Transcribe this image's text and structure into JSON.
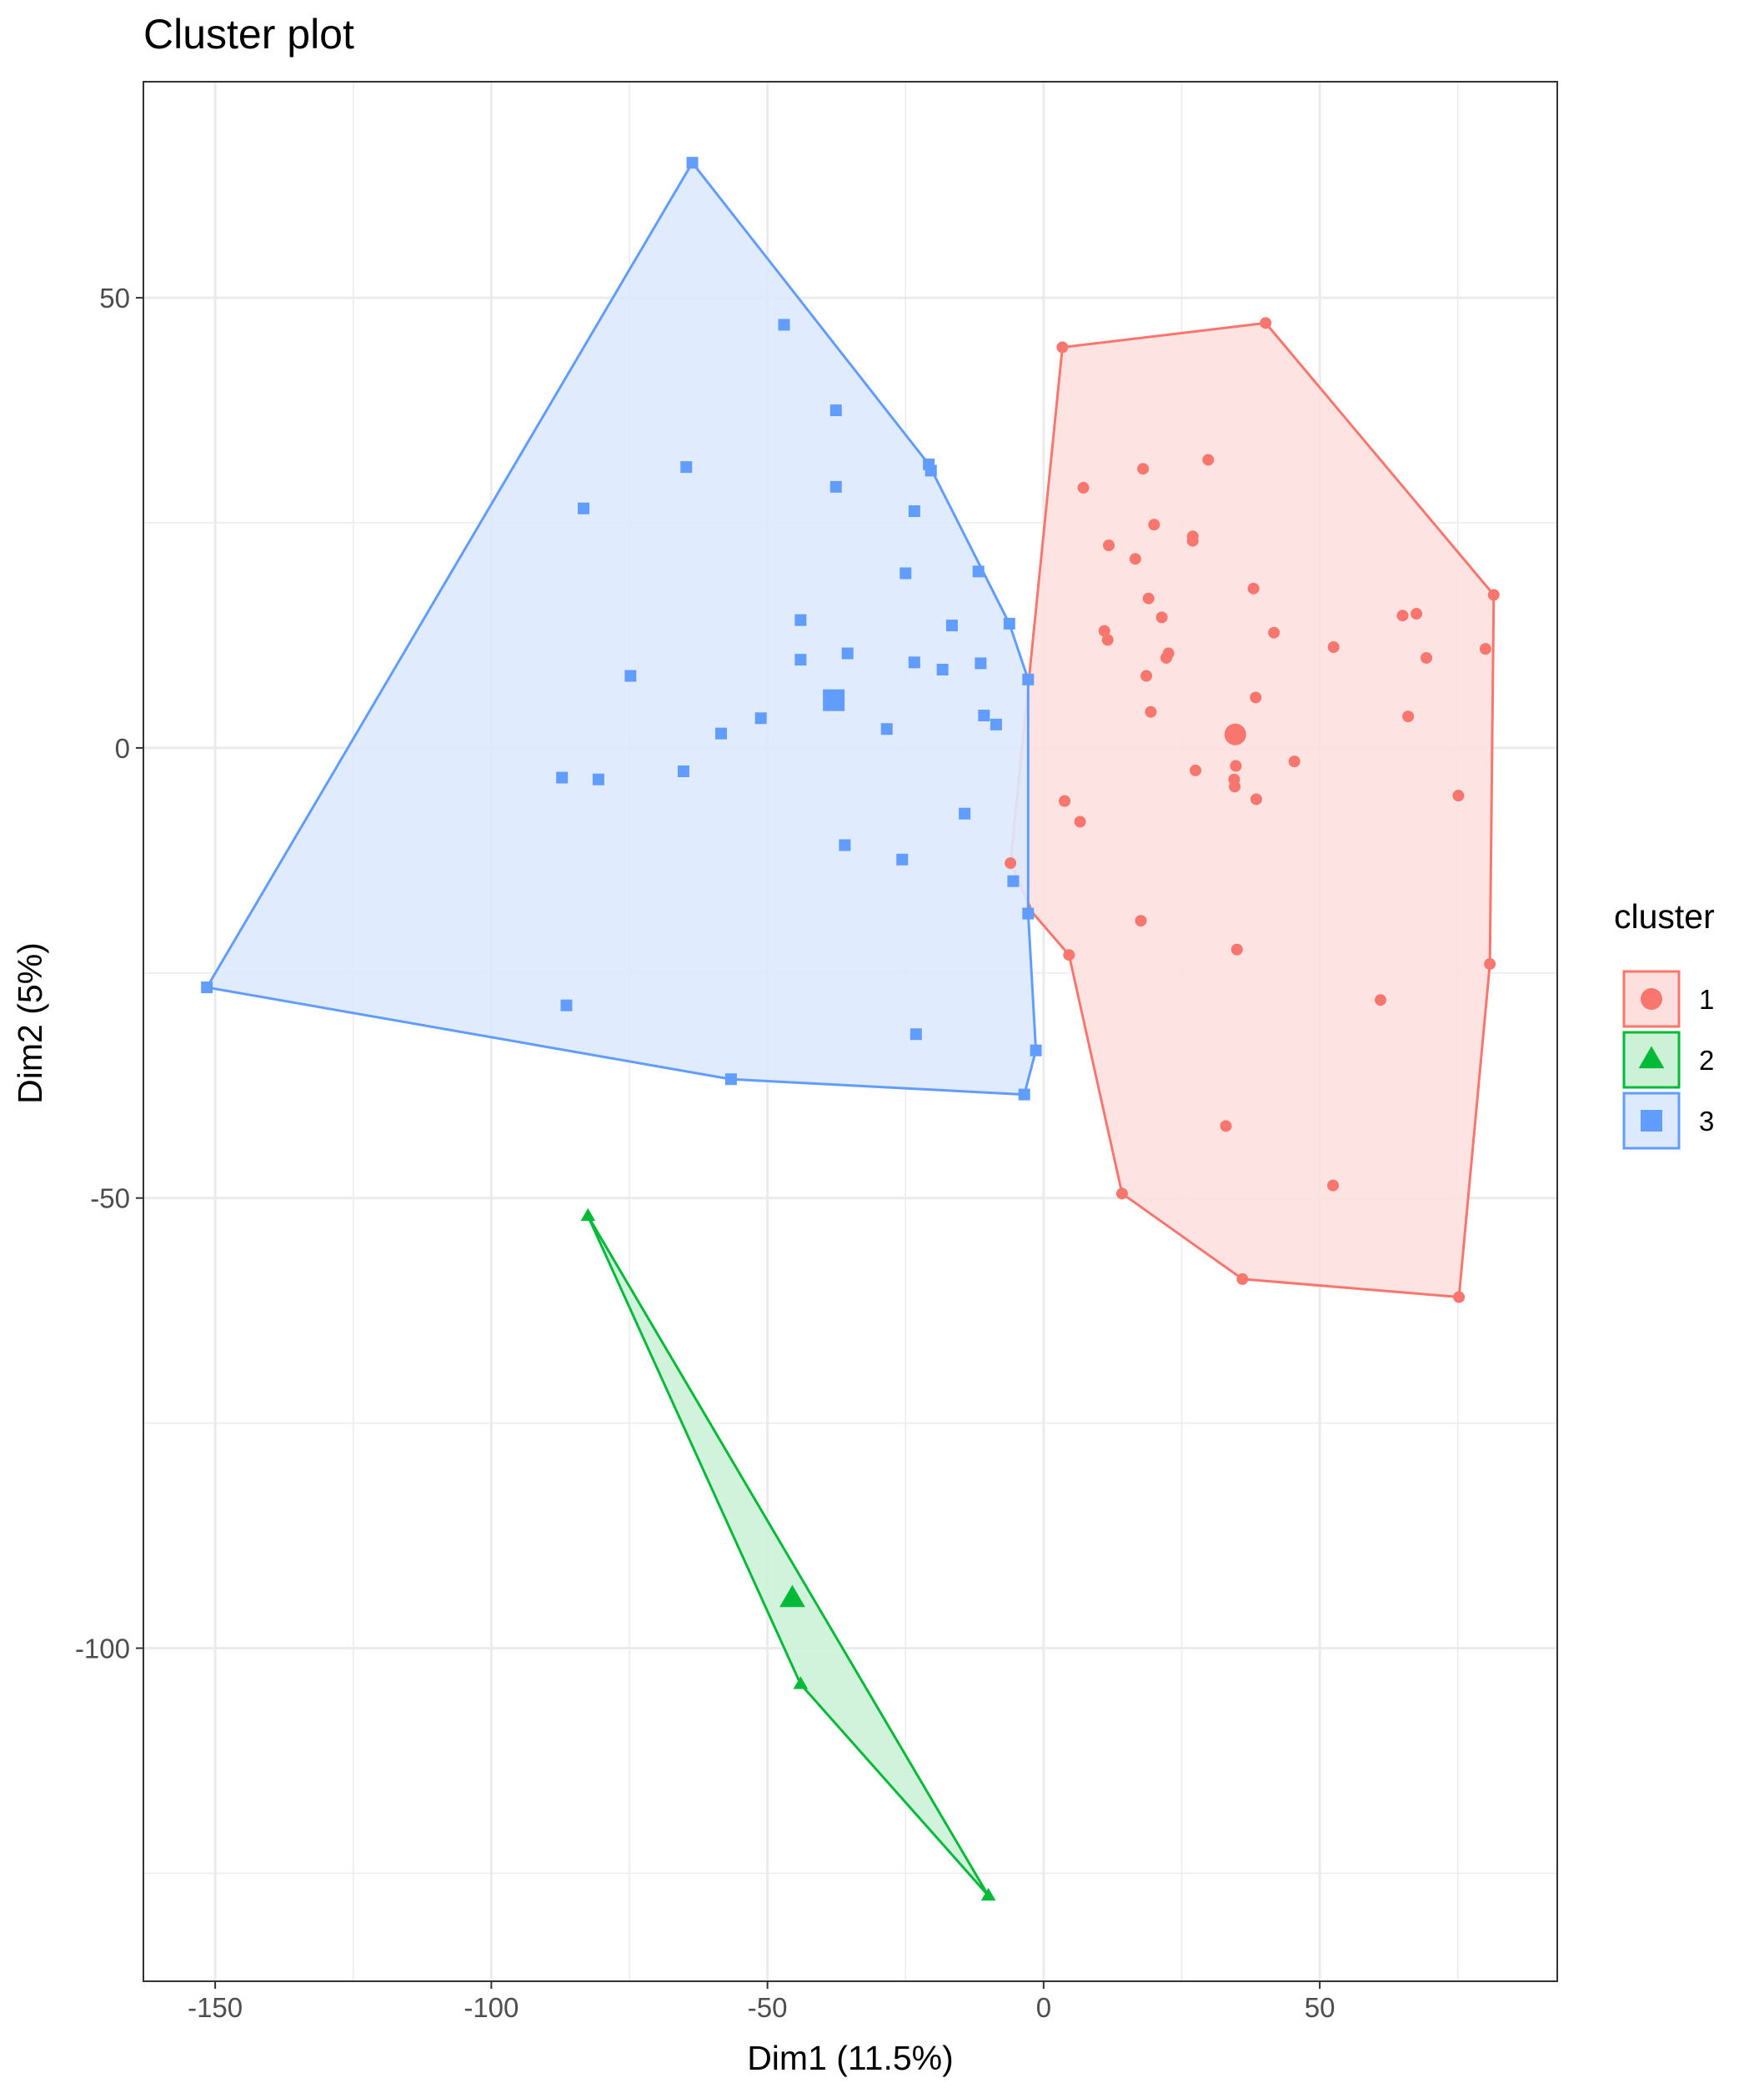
{
  "chart_data": {
    "type": "scatter",
    "title": "Cluster plot",
    "xlabel": "Dim1 (11.5%)",
    "ylabel": "Dim2 (5%)",
    "xlim": [
      -163,
      93
    ],
    "ylim": [
      -137,
      74
    ],
    "xticks": [
      -150,
      -100,
      -50,
      0,
      50
    ],
    "yticks": [
      50,
      0,
      -50,
      -100
    ],
    "grid": true,
    "legend": {
      "title": "cluster",
      "position": "right"
    },
    "series": [
      {
        "name": "1",
        "shape": "circle",
        "color": "#F8766D",
        "fill": "#FDE0DE",
        "center": [
          34.7,
          1.5
        ],
        "hull": [
          [
            3.4,
            44.5
          ],
          [
            40.2,
            47.2
          ],
          [
            81.5,
            17.0
          ],
          [
            80.8,
            -24.0
          ],
          [
            75.2,
            -61.0
          ],
          [
            36.0,
            -59.0
          ],
          [
            14.2,
            -49.5
          ],
          [
            4.6,
            -23.0
          ],
          [
            -2.0,
            -18.3
          ],
          [
            -6.0,
            -12.8
          ],
          [
            -2.6,
            8.0
          ]
        ],
        "points": [
          [
            3.4,
            44.5
          ],
          [
            40.2,
            47.2
          ],
          [
            81.5,
            17.0
          ],
          [
            80.8,
            -24.0
          ],
          [
            75.2,
            -61.0
          ],
          [
            36.0,
            -59.0
          ],
          [
            14.2,
            -49.5
          ],
          [
            4.6,
            -23.0
          ],
          [
            -6.0,
            -12.8
          ],
          [
            7.2,
            28.9
          ],
          [
            18.0,
            31.0
          ],
          [
            29.8,
            32.0
          ],
          [
            20.0,
            24.8
          ],
          [
            27.0,
            23.5
          ],
          [
            27.0,
            23.0
          ],
          [
            11.8,
            22.5
          ],
          [
            16.6,
            21.0
          ],
          [
            19.0,
            16.6
          ],
          [
            38.0,
            17.7
          ],
          [
            21.4,
            14.5
          ],
          [
            11.0,
            13.0
          ],
          [
            11.6,
            12.0
          ],
          [
            22.2,
            10.0
          ],
          [
            22.6,
            10.5
          ],
          [
            41.7,
            12.8
          ],
          [
            52.5,
            11.2
          ],
          [
            65.0,
            14.7
          ],
          [
            67.5,
            14.9
          ],
          [
            69.3,
            10.0
          ],
          [
            80.0,
            11.0
          ],
          [
            18.6,
            8.0
          ],
          [
            38.4,
            5.6
          ],
          [
            19.4,
            4.0
          ],
          [
            66.0,
            3.5
          ],
          [
            27.5,
            -2.5
          ],
          [
            34.8,
            -2.0
          ],
          [
            34.5,
            -3.5
          ],
          [
            34.6,
            -4.3
          ],
          [
            45.4,
            -1.5
          ],
          [
            38.5,
            -5.7
          ],
          [
            3.8,
            -5.9
          ],
          [
            6.6,
            -8.2
          ],
          [
            75.1,
            -5.3
          ],
          [
            17.6,
            -19.2
          ],
          [
            35.0,
            -22.4
          ],
          [
            61.0,
            -28.0
          ],
          [
            33.0,
            -42.0
          ],
          [
            52.4,
            -48.6
          ]
        ]
      },
      {
        "name": "2",
        "shape": "triangle",
        "color": "#00BA38",
        "fill": "#CCF1D7",
        "center": [
          -45.5,
          -94.5
        ],
        "hull": [
          [
            -82.5,
            -52.0
          ],
          [
            -10.0,
            -127.5
          ],
          [
            -44.0,
            -104.0
          ]
        ],
        "points": [
          [
            -82.5,
            -52.0
          ],
          [
            -44.0,
            -104.0
          ],
          [
            -10.0,
            -127.5
          ]
        ]
      },
      {
        "name": "3",
        "shape": "square",
        "color": "#619CFF",
        "fill": "#DDE9FD",
        "center": [
          -38.0,
          5.3
        ],
        "hull": [
          [
            -63.6,
            65.0
          ],
          [
            -20.8,
            31.5
          ],
          [
            -6.2,
            13.8
          ],
          [
            -2.8,
            7.6
          ],
          [
            -2.8,
            -18.4
          ],
          [
            -1.4,
            -33.6
          ],
          [
            -3.5,
            -38.5
          ],
          [
            -56.6,
            -36.8
          ],
          [
            -151.5,
            -26.6
          ]
        ],
        "points": [
          [
            -63.6,
            65.0
          ],
          [
            -47.0,
            47.0
          ],
          [
            -37.6,
            37.5
          ],
          [
            -64.7,
            31.2
          ],
          [
            -20.8,
            31.5
          ],
          [
            -20.4,
            30.8
          ],
          [
            -37.6,
            29.0
          ],
          [
            -83.3,
            26.6
          ],
          [
            -23.4,
            26.3
          ],
          [
            -25.0,
            19.4
          ],
          [
            -11.8,
            19.6
          ],
          [
            -44.0,
            14.2
          ],
          [
            -16.6,
            13.6
          ],
          [
            -6.2,
            13.8
          ],
          [
            -35.5,
            10.5
          ],
          [
            -44.0,
            9.8
          ],
          [
            -23.4,
            9.5
          ],
          [
            -18.3,
            8.7
          ],
          [
            -11.4,
            9.4
          ],
          [
            -74.8,
            8.0
          ],
          [
            -2.8,
            7.6
          ],
          [
            -51.2,
            3.3
          ],
          [
            -10.8,
            3.6
          ],
          [
            -8.6,
            2.6
          ],
          [
            -28.4,
            2.1
          ],
          [
            -58.4,
            1.6
          ],
          [
            -65.2,
            -2.6
          ],
          [
            -87.2,
            -3.3
          ],
          [
            -80.6,
            -3.5
          ],
          [
            -14.3,
            -7.3
          ],
          [
            -36.0,
            -10.8
          ],
          [
            -25.6,
            -12.4
          ],
          [
            -5.5,
            -14.8
          ],
          [
            -2.8,
            -18.4
          ],
          [
            -151.5,
            -26.6
          ],
          [
            -86.4,
            -28.6
          ],
          [
            -23.1,
            -31.8
          ],
          [
            -1.4,
            -33.6
          ],
          [
            -56.6,
            -36.8
          ],
          [
            -3.5,
            -38.5
          ]
        ]
      }
    ]
  }
}
